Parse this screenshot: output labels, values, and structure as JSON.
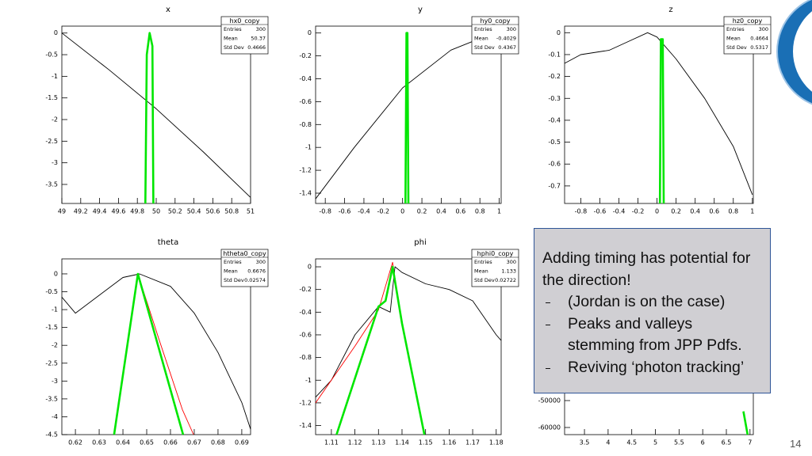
{
  "chart_data": [
    {
      "type": "line",
      "title": "x",
      "stats": {
        "name": "hx0_copy",
        "entries": 300,
        "mean": 50.37,
        "std_dev": 0.4666
      },
      "xlim": [
        49,
        51
      ],
      "ylim": [
        -3.94,
        0.16
      ],
      "xticks": [
        49,
        49.2,
        49.4,
        49.6,
        49.8,
        50,
        50.2,
        50.4,
        50.6,
        50.8,
        51
      ],
      "yticks": [
        0,
        -0.5,
        -1,
        -1.5,
        -2,
        -2.5,
        -3,
        -3.5
      ],
      "series": [
        {
          "color": "#000000",
          "x": [
            49,
            49.5,
            50,
            50.5,
            51
          ],
          "values": [
            0,
            -0.85,
            -1.75,
            -2.75,
            -3.8
          ]
        },
        {
          "color": "#00e600",
          "x": [
            49.885,
            49.9,
            49.93,
            49.96,
            49.97
          ],
          "values": [
            -3.94,
            -0.5,
            0,
            -0.3,
            -3.94
          ]
        }
      ]
    },
    {
      "type": "line",
      "title": "y",
      "stats": {
        "name": "hy0_copy",
        "entries": 300,
        "mean": -0.4029,
        "std_dev": 0.4367
      },
      "xlim": [
        -0.9,
        1.02
      ],
      "ylim": [
        -1.49,
        0.06
      ],
      "xticks": [
        -0.8,
        -0.6,
        -0.4,
        -0.2,
        0,
        0.2,
        0.4,
        0.6,
        0.8,
        1
      ],
      "yticks": [
        0,
        -0.2,
        -0.4,
        -0.6,
        -0.8,
        -1,
        -1.2,
        -1.4
      ],
      "series": [
        {
          "color": "#000000",
          "x": [
            -0.9,
            -0.5,
            0,
            0.5,
            1
          ],
          "values": [
            -1.45,
            -1.0,
            -0.48,
            -0.15,
            0.02
          ]
        },
        {
          "color": "#00e600",
          "x": [
            0.03,
            0.04,
            0.05,
            0.06
          ],
          "values": [
            -1.49,
            0,
            0,
            -1.49
          ]
        }
      ]
    },
    {
      "type": "line",
      "title": "z",
      "stats": {
        "name": "hz0_copy",
        "entries": 300,
        "mean": 0.4664,
        "std_dev": 0.5317
      },
      "xlim": [
        -0.97,
        1.01
      ],
      "ylim": [
        -0.78,
        0.03
      ],
      "xticks": [
        -0.8,
        -0.6,
        -0.4,
        -0.2,
        0,
        0.2,
        0.4,
        0.6,
        0.8,
        1
      ],
      "yticks": [
        0,
        -0.1,
        -0.2,
        -0.3,
        -0.4,
        -0.5,
        -0.6,
        -0.7
      ],
      "series": [
        {
          "color": "#000000",
          "x": [
            -0.97,
            -0.8,
            -0.5,
            -0.3,
            -0.1,
            0,
            0.2,
            0.5,
            0.8,
            1
          ],
          "values": [
            -0.14,
            -0.1,
            -0.08,
            -0.04,
            0,
            -0.02,
            -0.12,
            -0.3,
            -0.52,
            -0.74
          ]
        },
        {
          "color": "#00e600",
          "x": [
            0.03,
            0.04,
            0.06,
            0.07
          ],
          "values": [
            -0.78,
            -0.03,
            -0.03,
            -0.78
          ]
        }
      ]
    },
    {
      "type": "line",
      "title": "theta",
      "stats": {
        "name": "htheta0_copy",
        "entries": 300,
        "mean": 0.6676,
        "std_dev": 0.02574
      },
      "xlim": [
        0.6143,
        0.6937
      ],
      "ylim": [
        -4.5,
        0.42
      ],
      "xticks": [
        0.62,
        0.63,
        0.64,
        0.65,
        0.66,
        0.67,
        0.68,
        0.69
      ],
      "yticks": [
        0,
        -0.5,
        -1,
        -1.5,
        -2,
        -2.5,
        -3,
        -3.5,
        -4,
        -4.5
      ],
      "series": [
        {
          "color": "#000000",
          "x": [
            0.6143,
            0.62,
            0.63,
            0.64,
            0.647,
            0.66,
            0.67,
            0.68,
            0.69,
            0.6937
          ],
          "values": [
            -0.65,
            -1.1,
            -0.6,
            -0.1,
            0,
            -0.35,
            -1.1,
            -2.2,
            -3.6,
            -4.35
          ]
        },
        {
          "color": "#ff0000",
          "x": [
            0.6463,
            0.655,
            0.665,
            0.6697
          ],
          "values": [
            0,
            -1.8,
            -3.8,
            -4.5
          ]
        },
        {
          "color": "#00e600",
          "x": [
            0.6363,
            0.6463,
            0.6653
          ],
          "values": [
            -4.5,
            0,
            -4.5
          ]
        }
      ]
    },
    {
      "type": "line",
      "title": "phi",
      "stats": {
        "name": "hphi0_copy",
        "entries": 300,
        "mean": 1.133,
        "std_dev": 0.02722
      },
      "xlim": [
        1.1033,
        1.1821
      ],
      "ylim": [
        -1.48,
        0.07
      ],
      "xticks": [
        1.11,
        1.12,
        1.13,
        1.14,
        1.15,
        1.16,
        1.17,
        1.18
      ],
      "yticks": [
        0,
        -0.2,
        -0.4,
        -0.6,
        -0.8,
        -1,
        -1.2,
        -1.4
      ],
      "series": [
        {
          "color": "#000000",
          "x": [
            1.1033,
            1.11,
            1.12,
            1.13,
            1.135,
            1.137,
            1.14,
            1.15,
            1.16,
            1.17,
            1.18,
            1.1821
          ],
          "values": [
            -1.15,
            -1.0,
            -0.6,
            -0.35,
            -0.4,
            0,
            -0.05,
            -0.15,
            -0.2,
            -0.3,
            -0.6,
            -0.65
          ]
        },
        {
          "color": "#ff0000",
          "x": [
            1.1033,
            1.12,
            1.13,
            1.136,
            1.14,
            1.1495
          ],
          "values": [
            -1.2,
            -0.7,
            -0.38,
            0.04,
            -0.5,
            -1.48
          ]
        },
        {
          "color": "#00e600",
          "x": [
            1.1122,
            1.13,
            1.133,
            1.136,
            1.14,
            1.1495
          ],
          "values": [
            -1.48,
            -0.35,
            -0.3,
            0,
            -0.5,
            -1.48
          ]
        }
      ]
    },
    {
      "type": "line",
      "xlim": [
        3.08,
        7.07
      ],
      "ylim": [
        -62650,
        2650
      ],
      "xticks": [
        3.5,
        4,
        4.5,
        5,
        5.5,
        6,
        6.5,
        7
      ],
      "yticks": [
        -50000,
        -60000
      ],
      "series": [
        {
          "color": "#00e600",
          "x": [
            6.86,
            6.95
          ],
          "values": [
            -54000,
            -62650
          ]
        }
      ]
    }
  ],
  "stats_labels": [
    "Entries",
    "Mean",
    "Std Dev"
  ],
  "note": {
    "heading": "Adding timing has potential for the direction!",
    "items": [
      "(Jordan is on the case)",
      "Peaks and valleys stemming from JPP Pdfs.",
      "Reviving ‘photon tracking’"
    ]
  },
  "page_number": 14
}
